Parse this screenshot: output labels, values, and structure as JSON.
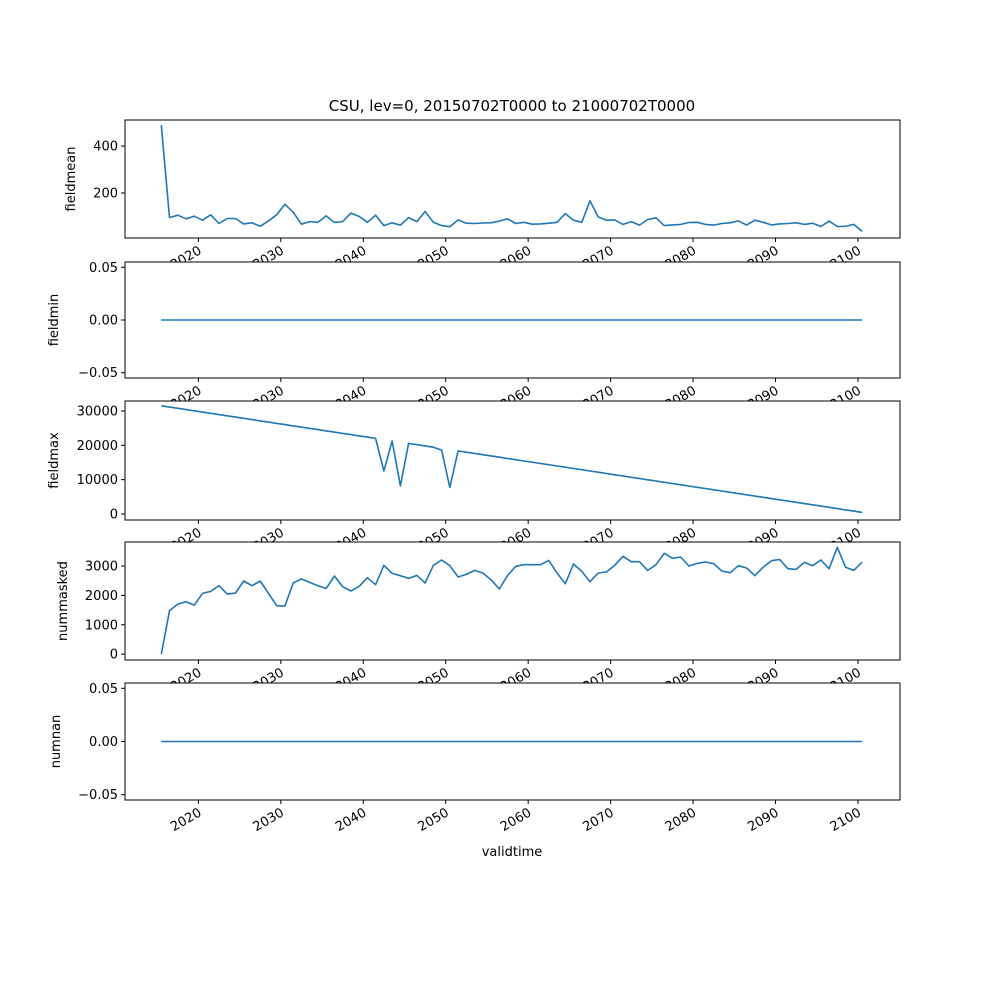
{
  "chart_data": {
    "type": "line",
    "title": "CSU, lev=0, 20150702T0000 to 21000702T0000",
    "xlabel": "validtime",
    "x_tick_labels": [
      "2020",
      "2030",
      "2040",
      "2050",
      "2060",
      "2070",
      "2080",
      "2090",
      "2100"
    ],
    "x_tick_values": [
      2020,
      2030,
      2040,
      2050,
      2060,
      2070,
      2080,
      2090,
      2100
    ],
    "xlim": [
      2011.1,
      2105.1
    ],
    "line_color": "#1f77b4",
    "x": [
      2015.5,
      2016.5,
      2017.5,
      2018.5,
      2019.5,
      2020.5,
      2021.5,
      2022.5,
      2023.5,
      2024.5,
      2025.5,
      2026.5,
      2027.5,
      2028.5,
      2029.5,
      2030.5,
      2031.5,
      2032.5,
      2033.5,
      2034.5,
      2035.5,
      2036.5,
      2037.5,
      2038.5,
      2039.5,
      2040.5,
      2041.5,
      2042.5,
      2043.5,
      2044.5,
      2045.5,
      2046.5,
      2047.5,
      2048.5,
      2049.5,
      2050.5,
      2051.5,
      2052.5,
      2053.5,
      2054.5,
      2055.5,
      2056.5,
      2057.5,
      2058.5,
      2059.5,
      2060.5,
      2061.5,
      2062.5,
      2063.5,
      2064.5,
      2065.5,
      2066.5,
      2067.5,
      2068.5,
      2069.5,
      2070.5,
      2071.5,
      2072.5,
      2073.5,
      2074.5,
      2075.5,
      2076.5,
      2077.5,
      2078.5,
      2079.5,
      2080.5,
      2081.5,
      2082.5,
      2083.5,
      2084.5,
      2085.5,
      2086.5,
      2087.5,
      2088.5,
      2089.5,
      2090.5,
      2091.5,
      2092.5,
      2093.5,
      2094.5,
      2095.5,
      2096.5,
      2097.5,
      2098.5,
      2099.5,
      2100.5
    ],
    "panels": [
      {
        "ylabel": "fieldmean",
        "ylim": [
          8,
          511
        ],
        "y_tick_values": [
          200,
          400
        ],
        "y_tick_labels": [
          "200",
          "400"
        ],
        "values": [
          489,
          95,
          105,
          90,
          101,
          84,
          107,
          70,
          91,
          91,
          68,
          73,
          58,
          81,
          107,
          152,
          118,
          67,
          78,
          75,
          102,
          74,
          78,
          114,
          100,
          75,
          105,
          61,
          73,
          63,
          95,
          78,
          121,
          75,
          61,
          56,
          85,
          71,
          70,
          72,
          73,
          80,
          90,
          70,
          75,
          67,
          68,
          71,
          75,
          112,
          84,
          75,
          166,
          98,
          84,
          85,
          66,
          78,
          63,
          87,
          94,
          61,
          64,
          66,
          74,
          75,
          66,
          63,
          70,
          73,
          81,
          63,
          84,
          75,
          64,
          68,
          70,
          73,
          66,
          71,
          57,
          80,
          57,
          58,
          66,
          36
        ]
      },
      {
        "ylabel": "fieldmin",
        "ylim": [
          -0.055,
          0.055
        ],
        "y_tick_values": [
          -0.05,
          0,
          0.05
        ],
        "y_tick_labels": [
          "−0.05",
          "0.00",
          "0.05"
        ],
        "values": [
          0,
          0,
          0,
          0,
          0,
          0,
          0,
          0,
          0,
          0,
          0,
          0,
          0,
          0,
          0,
          0,
          0,
          0,
          0,
          0,
          0,
          0,
          0,
          0,
          0,
          0,
          0,
          0,
          0,
          0,
          0,
          0,
          0,
          0,
          0,
          0,
          0,
          0,
          0,
          0,
          0,
          0,
          0,
          0,
          0,
          0,
          0,
          0,
          0,
          0,
          0,
          0,
          0,
          0,
          0,
          0,
          0,
          0,
          0,
          0,
          0,
          0,
          0,
          0,
          0,
          0,
          0,
          0,
          0,
          0,
          0,
          0,
          0,
          0,
          0,
          0,
          0,
          0,
          0,
          0,
          0,
          0,
          0,
          0,
          0,
          0
        ]
      },
      {
        "ylabel": "fieldmax",
        "ylim": [
          -1750,
          32900
        ],
        "y_tick_values": [
          0,
          10000,
          20000,
          30000
        ],
        "y_tick_labels": [
          "0",
          "10000",
          "20000",
          "30000"
        ],
        "values": [
          31500,
          31135,
          30770,
          30405,
          30040,
          29675,
          29310,
          28945,
          28580,
          28215,
          27850,
          27485,
          27120,
          26755,
          26390,
          26025,
          25660,
          25295,
          24930,
          24565,
          24200,
          23835,
          23470,
          23105,
          22740,
          22375,
          22010,
          12500,
          21280,
          8200,
          20550,
          20185,
          19820,
          19455,
          18600,
          7700,
          18360,
          17995,
          17630,
          17265,
          16900,
          16535,
          16170,
          15805,
          15440,
          15075,
          14710,
          14345,
          13980,
          13615,
          13250,
          12885,
          12520,
          12155,
          11790,
          11425,
          11060,
          10695,
          10330,
          9965,
          9600,
          9235,
          8870,
          8505,
          8140,
          7775,
          7410,
          7045,
          6680,
          6315,
          5950,
          5585,
          5220,
          4855,
          4490,
          4125,
          3760,
          3395,
          3030,
          2665,
          2300,
          1935,
          1570,
          1205,
          840,
          475
        ]
      },
      {
        "ylabel": "nummasked",
        "ylim": [
          -200,
          3818
        ],
        "y_tick_values": [
          0,
          1000,
          2000,
          3000
        ],
        "y_tick_labels": [
          "0",
          "1000",
          "2000",
          "3000"
        ],
        "values": [
          0,
          1477,
          1704,
          1784,
          1670,
          2068,
          2136,
          2330,
          2045,
          2079,
          2489,
          2330,
          2489,
          2068,
          1648,
          1636,
          2421,
          2557,
          2443,
          2330,
          2239,
          2659,
          2295,
          2148,
          2307,
          2602,
          2364,
          3023,
          2750,
          2670,
          2580,
          2682,
          2421,
          3023,
          3205,
          3011,
          2625,
          2716,
          2852,
          2761,
          2534,
          2216,
          2682,
          2989,
          3045,
          3045,
          3045,
          3193,
          2761,
          2398,
          3068,
          2818,
          2466,
          2761,
          2795,
          3023,
          3330,
          3148,
          3148,
          2852,
          3045,
          3432,
          3262,
          3307,
          3000,
          3091,
          3136,
          3080,
          2829,
          2773,
          3011,
          2932,
          2670,
          2955,
          3182,
          3227,
          2909,
          2886,
          3125,
          3011,
          3205,
          2909,
          3636,
          2955,
          2852,
          3136
        ]
      },
      {
        "ylabel": "numnan",
        "ylim": [
          -0.055,
          0.055
        ],
        "y_tick_values": [
          -0.05,
          0,
          0.05
        ],
        "y_tick_labels": [
          "−0.05",
          "0.00",
          "0.05"
        ],
        "values": [
          0,
          0,
          0,
          0,
          0,
          0,
          0,
          0,
          0,
          0,
          0,
          0,
          0,
          0,
          0,
          0,
          0,
          0,
          0,
          0,
          0,
          0,
          0,
          0,
          0,
          0,
          0,
          0,
          0,
          0,
          0,
          0,
          0,
          0,
          0,
          0,
          0,
          0,
          0,
          0,
          0,
          0,
          0,
          0,
          0,
          0,
          0,
          0,
          0,
          0,
          0,
          0,
          0,
          0,
          0,
          0,
          0,
          0,
          0,
          0,
          0,
          0,
          0,
          0,
          0,
          0,
          0,
          0,
          0,
          0,
          0,
          0,
          0,
          0,
          0,
          0,
          0,
          0,
          0,
          0,
          0,
          0,
          0,
          0,
          0,
          0
        ]
      }
    ]
  }
}
